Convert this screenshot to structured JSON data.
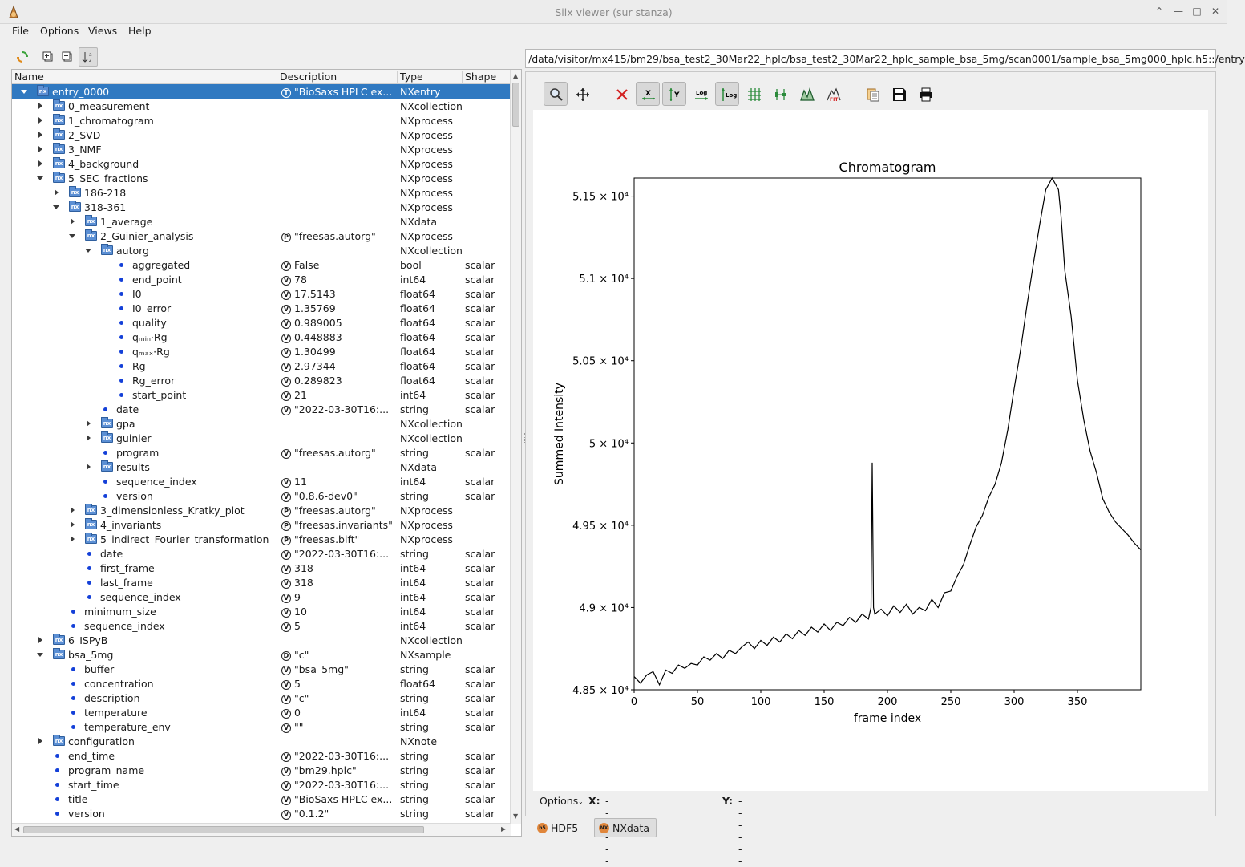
{
  "window": {
    "title": "Silx viewer (sur stanza)"
  },
  "menu": [
    "File",
    "Options",
    "Views",
    "Help"
  ],
  "tree": {
    "columns": [
      "Name",
      "Description",
      "Type",
      "Shape"
    ],
    "rows": [
      {
        "depth": 0,
        "exp": "down",
        "icon": "nx",
        "name": "entry_0000",
        "badge": "T",
        "desc": "\"BioSaxs HPLC ex...",
        "type": "NXentry",
        "shape": "",
        "sel": true
      },
      {
        "depth": 1,
        "exp": "right",
        "icon": "nx",
        "name": "0_measurement",
        "badge": "",
        "desc": "",
        "type": "NXcollection",
        "shape": ""
      },
      {
        "depth": 1,
        "exp": "right",
        "icon": "nx",
        "name": "1_chromatogram",
        "badge": "",
        "desc": "",
        "type": "NXprocess",
        "shape": ""
      },
      {
        "depth": 1,
        "exp": "right",
        "icon": "nx",
        "name": "2_SVD",
        "badge": "",
        "desc": "",
        "type": "NXprocess",
        "shape": ""
      },
      {
        "depth": 1,
        "exp": "right",
        "icon": "nx",
        "name": "3_NMF",
        "badge": "",
        "desc": "",
        "type": "NXprocess",
        "shape": ""
      },
      {
        "depth": 1,
        "exp": "right",
        "icon": "nx",
        "name": "4_background",
        "badge": "",
        "desc": "",
        "type": "NXprocess",
        "shape": ""
      },
      {
        "depth": 1,
        "exp": "down",
        "icon": "nx",
        "name": "5_SEC_fractions",
        "badge": "",
        "desc": "",
        "type": "NXprocess",
        "shape": ""
      },
      {
        "depth": 2,
        "exp": "right",
        "icon": "nx",
        "name": "186-218",
        "badge": "",
        "desc": "",
        "type": "NXprocess",
        "shape": ""
      },
      {
        "depth": 2,
        "exp": "down",
        "icon": "nx",
        "name": "318-361",
        "badge": "",
        "desc": "",
        "type": "NXprocess",
        "shape": ""
      },
      {
        "depth": 3,
        "exp": "right",
        "icon": "nx",
        "name": "1_average",
        "badge": "",
        "desc": "",
        "type": "NXdata",
        "shape": ""
      },
      {
        "depth": 3,
        "exp": "down",
        "icon": "nx",
        "name": "2_Guinier_analysis",
        "badge": "P",
        "desc": "\"freesas.autorg\"",
        "type": "NXprocess",
        "shape": ""
      },
      {
        "depth": 4,
        "exp": "down",
        "icon": "nx",
        "name": "autorg",
        "badge": "",
        "desc": "",
        "type": "NXcollection",
        "shape": ""
      },
      {
        "depth": 5,
        "exp": "",
        "icon": "dot",
        "name": "aggregated",
        "badge": "V",
        "desc": "False",
        "type": "bool",
        "shape": "scalar"
      },
      {
        "depth": 5,
        "exp": "",
        "icon": "dot",
        "name": "end_point",
        "badge": "V",
        "desc": "78",
        "type": "int64",
        "shape": "scalar"
      },
      {
        "depth": 5,
        "exp": "",
        "icon": "dot",
        "name": "I0",
        "badge": "V",
        "desc": "17.5143",
        "type": "float64",
        "shape": "scalar"
      },
      {
        "depth": 5,
        "exp": "",
        "icon": "dot",
        "name": "I0_error",
        "badge": "V",
        "desc": "1.35769",
        "type": "float64",
        "shape": "scalar"
      },
      {
        "depth": 5,
        "exp": "",
        "icon": "dot",
        "name": "quality",
        "badge": "V",
        "desc": "0.989005",
        "type": "float64",
        "shape": "scalar"
      },
      {
        "depth": 5,
        "exp": "",
        "icon": "dot",
        "name": "qₘᵢₙ·Rg",
        "badge": "V",
        "desc": "0.448883",
        "type": "float64",
        "shape": "scalar"
      },
      {
        "depth": 5,
        "exp": "",
        "icon": "dot",
        "name": "qₘₐₓ·Rg",
        "badge": "V",
        "desc": "1.30499",
        "type": "float64",
        "shape": "scalar"
      },
      {
        "depth": 5,
        "exp": "",
        "icon": "dot",
        "name": "Rg",
        "badge": "V",
        "desc": "2.97344",
        "type": "float64",
        "shape": "scalar"
      },
      {
        "depth": 5,
        "exp": "",
        "icon": "dot",
        "name": "Rg_error",
        "badge": "V",
        "desc": "0.289823",
        "type": "float64",
        "shape": "scalar"
      },
      {
        "depth": 5,
        "exp": "",
        "icon": "dot",
        "name": "start_point",
        "badge": "V",
        "desc": "21",
        "type": "int64",
        "shape": "scalar"
      },
      {
        "depth": 4,
        "exp": "",
        "icon": "dot",
        "name": "date",
        "badge": "V",
        "desc": "\"2022-03-30T16:...",
        "type": "string",
        "shape": "scalar"
      },
      {
        "depth": 4,
        "exp": "right",
        "icon": "nx",
        "name": "gpa",
        "badge": "",
        "desc": "",
        "type": "NXcollection",
        "shape": ""
      },
      {
        "depth": 4,
        "exp": "right",
        "icon": "nx",
        "name": "guinier",
        "badge": "",
        "desc": "",
        "type": "NXcollection",
        "shape": ""
      },
      {
        "depth": 4,
        "exp": "",
        "icon": "dot",
        "name": "program",
        "badge": "V",
        "desc": "\"freesas.autorg\"",
        "type": "string",
        "shape": "scalar"
      },
      {
        "depth": 4,
        "exp": "right",
        "icon": "nx",
        "name": "results",
        "badge": "",
        "desc": "",
        "type": "NXdata",
        "shape": ""
      },
      {
        "depth": 4,
        "exp": "",
        "icon": "dot",
        "name": "sequence_index",
        "badge": "V",
        "desc": "11",
        "type": "int64",
        "shape": "scalar"
      },
      {
        "depth": 4,
        "exp": "",
        "icon": "dot",
        "name": "version",
        "badge": "V",
        "desc": "\"0.8.6-dev0\"",
        "type": "string",
        "shape": "scalar"
      },
      {
        "depth": 3,
        "exp": "right",
        "icon": "nx",
        "name": "3_dimensionless_Kratky_plot",
        "badge": "P",
        "desc": "\"freesas.autorg\"",
        "type": "NXprocess",
        "shape": ""
      },
      {
        "depth": 3,
        "exp": "right",
        "icon": "nx",
        "name": "4_invariants",
        "badge": "P",
        "desc": "\"freesas.invariants\"",
        "type": "NXprocess",
        "shape": ""
      },
      {
        "depth": 3,
        "exp": "right",
        "icon": "nx",
        "name": "5_indirect_Fourier_transformation",
        "badge": "P",
        "desc": "\"freesas.bift\"",
        "type": "NXprocess",
        "shape": ""
      },
      {
        "depth": 3,
        "exp": "",
        "icon": "dot",
        "name": "date",
        "badge": "V",
        "desc": "\"2022-03-30T16:...",
        "type": "string",
        "shape": "scalar"
      },
      {
        "depth": 3,
        "exp": "",
        "icon": "dot",
        "name": "first_frame",
        "badge": "V",
        "desc": "318",
        "type": "int64",
        "shape": "scalar"
      },
      {
        "depth": 3,
        "exp": "",
        "icon": "dot",
        "name": "last_frame",
        "badge": "V",
        "desc": "318",
        "type": "int64",
        "shape": "scalar"
      },
      {
        "depth": 3,
        "exp": "",
        "icon": "dot",
        "name": "sequence_index",
        "badge": "V",
        "desc": "9",
        "type": "int64",
        "shape": "scalar"
      },
      {
        "depth": 2,
        "exp": "",
        "icon": "dot",
        "name": "minimum_size",
        "badge": "V",
        "desc": "10",
        "type": "int64",
        "shape": "scalar"
      },
      {
        "depth": 2,
        "exp": "",
        "icon": "dot",
        "name": "sequence_index",
        "badge": "V",
        "desc": "5",
        "type": "int64",
        "shape": "scalar"
      },
      {
        "depth": 1,
        "exp": "right",
        "icon": "nx",
        "name": "6_ISPyB",
        "badge": "",
        "desc": "",
        "type": "NXcollection",
        "shape": ""
      },
      {
        "depth": 1,
        "exp": "down",
        "icon": "nx",
        "name": "bsa_5mg",
        "badge": "D",
        "desc": "\"c\"",
        "type": "NXsample",
        "shape": ""
      },
      {
        "depth": 2,
        "exp": "",
        "icon": "dot",
        "name": "buffer",
        "badge": "V",
        "desc": "\"bsa_5mg\"",
        "type": "string",
        "shape": "scalar"
      },
      {
        "depth": 2,
        "exp": "",
        "icon": "dot",
        "name": "concentration",
        "badge": "V",
        "desc": "5",
        "type": "float64",
        "shape": "scalar"
      },
      {
        "depth": 2,
        "exp": "",
        "icon": "dot",
        "name": "description",
        "badge": "V",
        "desc": "\"c\"",
        "type": "string",
        "shape": "scalar"
      },
      {
        "depth": 2,
        "exp": "",
        "icon": "dot",
        "name": "temperature",
        "badge": "V",
        "desc": "0",
        "type": "int64",
        "shape": "scalar"
      },
      {
        "depth": 2,
        "exp": "",
        "icon": "dot",
        "name": "temperature_env",
        "badge": "V",
        "desc": "\"\"",
        "type": "string",
        "shape": "scalar"
      },
      {
        "depth": 1,
        "exp": "right",
        "icon": "nx",
        "name": "configuration",
        "badge": "",
        "desc": "",
        "type": "NXnote",
        "shape": ""
      },
      {
        "depth": 1,
        "exp": "",
        "icon": "dot",
        "name": "end_time",
        "badge": "V",
        "desc": "\"2022-03-30T16:...",
        "type": "string",
        "shape": "scalar"
      },
      {
        "depth": 1,
        "exp": "",
        "icon": "dot",
        "name": "program_name",
        "badge": "V",
        "desc": "\"bm29.hplc\"",
        "type": "string",
        "shape": "scalar"
      },
      {
        "depth": 1,
        "exp": "",
        "icon": "dot",
        "name": "start_time",
        "badge": "V",
        "desc": "\"2022-03-30T16:...",
        "type": "string",
        "shape": "scalar"
      },
      {
        "depth": 1,
        "exp": "",
        "icon": "dot",
        "name": "title",
        "badge": "V",
        "desc": "\"BioSaxs HPLC ex...",
        "type": "string",
        "shape": "scalar"
      },
      {
        "depth": 1,
        "exp": "",
        "icon": "dot",
        "name": "version",
        "badge": "V",
        "desc": "\"0.1.2\"",
        "type": "string",
        "shape": "scalar"
      }
    ]
  },
  "path": "/data/visitor/mx415/bm29/bsa_test2_30Mar22_hplc/bsa_test2_30Mar22_hplc_sample_bsa_5mg/scan0001/sample_bsa_5mg000_hplc.h5::/entry",
  "plot_toolbar": [
    "zoom-icon",
    "pan-icon",
    "reset-zoom-icon",
    "autoscale-x-icon",
    "autoscale-y-icon",
    "log-x-icon",
    "log-y-icon",
    "grid-icon",
    "curve-style-icon",
    "colormap-icon",
    "fit-icon",
    "copy-icon",
    "save-icon",
    "print-icon"
  ],
  "status": {
    "options_label": "Options",
    "x_label": "X:",
    "x_value": "------",
    "y_label": "Y:",
    "y_value": "------"
  },
  "tabs": [
    {
      "icon": "h5",
      "label": "HDF5"
    },
    {
      "icon": "NX",
      "label": "NXdata",
      "active": true
    }
  ],
  "chart_data": {
    "type": "line",
    "title": "Chromatogram",
    "xlabel": "frame index",
    "ylabel": "Summed Intensity",
    "xlim": [
      0,
      400
    ],
    "ylim": [
      48500,
      51610
    ],
    "xticks": [
      0,
      50,
      100,
      150,
      200,
      250,
      300,
      350
    ],
    "yticks": [
      48500,
      49000,
      49500,
      50000,
      50500,
      51000,
      51500
    ],
    "ytick_labels": [
      "4.85 × 10⁴",
      "4.9 × 10⁴",
      "4.95 × 10⁴",
      "5 × 10⁴",
      "5.05 × 10⁴",
      "5.1 × 10⁴",
      "5.15 × 10⁴"
    ],
    "color": "#000000",
    "x": [
      0,
      5,
      10,
      15,
      20,
      25,
      30,
      35,
      40,
      45,
      50,
      55,
      60,
      65,
      70,
      75,
      80,
      85,
      90,
      95,
      100,
      105,
      110,
      115,
      120,
      125,
      130,
      135,
      140,
      145,
      150,
      155,
      160,
      165,
      170,
      175,
      180,
      185,
      187,
      188,
      189,
      190,
      195,
      200,
      205,
      210,
      215,
      220,
      225,
      230,
      235,
      240,
      245,
      250,
      255,
      260,
      265,
      270,
      275,
      280,
      285,
      290,
      295,
      300,
      305,
      310,
      315,
      320,
      325,
      330,
      335,
      337,
      340,
      345,
      350,
      355,
      360,
      365,
      370,
      375,
      380,
      385,
      390,
      395,
      400
    ],
    "y": [
      48580,
      48540,
      48590,
      48610,
      48530,
      48620,
      48600,
      48650,
      48630,
      48660,
      48650,
      48700,
      48680,
      48720,
      48690,
      48740,
      48720,
      48760,
      48790,
      48750,
      48800,
      48770,
      48820,
      48790,
      48840,
      48810,
      48860,
      48830,
      48880,
      48850,
      48900,
      48860,
      48910,
      48890,
      48940,
      48910,
      48960,
      48930,
      49000,
      49880,
      49000,
      48960,
      48990,
      48950,
      49010,
      48970,
      49020,
      48960,
      49000,
      48980,
      49050,
      49000,
      49090,
      49100,
      49190,
      49260,
      49380,
      49490,
      49560,
      49670,
      49750,
      49880,
      50080,
      50330,
      50560,
      50830,
      51080,
      51320,
      51540,
      51610,
      51540,
      51380,
      51050,
      50770,
      50380,
      50140,
      49950,
      49820,
      49660,
      49580,
      49520,
      49480,
      49440,
      49390,
      49350
    ]
  }
}
